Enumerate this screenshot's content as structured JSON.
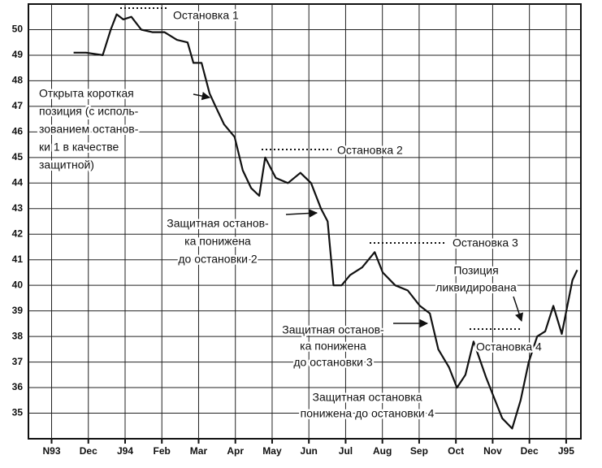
{
  "chart_data": {
    "type": "line",
    "x": [
      0.6,
      0.94,
      1.39,
      1.61,
      1.77,
      1.95,
      2.17,
      2.44,
      2.74,
      3.07,
      3.41,
      3.7,
      3.86,
      4.08,
      4.3,
      4.46,
      4.69,
      4.98,
      5.2,
      5.43,
      5.65,
      5.81,
      6.1,
      6.43,
      6.77,
      7.06,
      7.33,
      7.51,
      7.67,
      7.89,
      8.12,
      8.45,
      8.79,
      9.01,
      9.35,
      9.69,
      10.02,
      10.29,
      10.52,
      10.81,
      11.03,
      11.26,
      11.48,
      11.82,
      12.04,
      12.26,
      12.53,
      12.76,
      12.98,
      13.21,
      13.43,
      13.65,
      13.88,
      14.17,
      14.3
    ],
    "values": [
      49.1,
      49.1,
      49.0,
      50.0,
      50.6,
      50.4,
      50.5,
      50.0,
      49.9,
      49.9,
      49.6,
      49.5,
      48.7,
      48.7,
      47.5,
      47.0,
      46.3,
      45.8,
      44.5,
      43.8,
      43.5,
      45.0,
      44.2,
      44.0,
      44.4,
      44.0,
      43.0,
      42.5,
      40.0,
      40.0,
      40.4,
      40.7,
      41.3,
      40.5,
      40.0,
      39.8,
      39.2,
      38.9,
      37.5,
      36.8,
      36.0,
      36.5,
      37.8,
      36.4,
      35.6,
      34.8,
      34.4,
      35.5,
      37.0,
      38.0,
      38.2,
      39.2,
      38.1,
      40.2,
      40.6
    ],
    "color": "#111111",
    "xlim": [
      -0.63,
      14.4
    ],
    "xticks": [
      {
        "value": 0,
        "label": "N93"
      },
      {
        "value": 1,
        "label": "Dec"
      },
      {
        "value": 2,
        "label": "J94"
      },
      {
        "value": 3,
        "label": "Feb"
      },
      {
        "value": 4,
        "label": "Mar"
      },
      {
        "value": 5,
        "label": "Apr"
      },
      {
        "value": 6,
        "label": "May"
      },
      {
        "value": 7,
        "label": "Jun"
      },
      {
        "value": 8,
        "label": "Jul"
      },
      {
        "value": 9,
        "label": "Aug"
      },
      {
        "value": 10,
        "label": "Sep"
      },
      {
        "value": 11,
        "label": "Oct"
      },
      {
        "value": 12,
        "label": "Nov"
      },
      {
        "value": 13,
        "label": "Dec"
      },
      {
        "value": 14,
        "label": "J95"
      }
    ],
    "ylim": [
      34,
      51
    ],
    "yticks": [
      35,
      36,
      37,
      38,
      39,
      40,
      41,
      42,
      43,
      44,
      45,
      46,
      47,
      48,
      49,
      50
    ],
    "grid": true,
    "annotations": [
      [
        "Остановка 1"
      ],
      [
        "Открыта короткая",
        "позиция (с исполь-",
        "зованием останов-",
        "ки 1 в качестве",
        "защитной)"
      ],
      [
        "Остановка 2"
      ],
      [
        "Защитная останов-",
        "ка понижена",
        "до остановки 2"
      ],
      [
        "Остановка 3"
      ],
      [
        "Позиция",
        "ликвидирована"
      ],
      [
        "Защитная останов-",
        "ка понижена",
        "до остановки 3"
      ],
      [
        "Остановка 4"
      ],
      [
        "Защитная остановка",
        "понижена до остановки 4"
      ]
    ]
  }
}
